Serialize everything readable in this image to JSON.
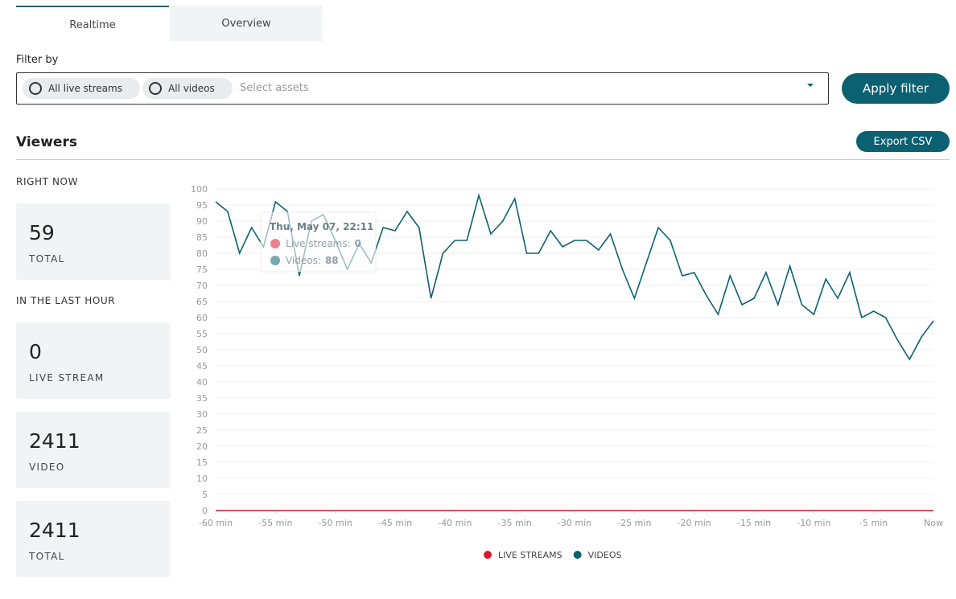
{
  "tabs": [
    "Realtime",
    "Overview"
  ],
  "filter": {
    "label": "Filter by",
    "chips": [
      "All live streams",
      "All videos"
    ],
    "placeholder": "Select assets",
    "button": "Apply filter"
  },
  "section": {
    "title": "Viewers",
    "export": "Export CSV"
  },
  "stats": {
    "right_now_label": "RIGHT NOW",
    "right_now": {
      "value": 59,
      "label": "TOTAL"
    },
    "last_hour_label": "IN THE LAST HOUR",
    "last_hour": [
      {
        "value": 0,
        "label": "LIVE STREAM"
      },
      {
        "value": 2411,
        "label": "VIDEO"
      },
      {
        "value": 2411,
        "label": "TOTAL"
      }
    ]
  },
  "tooltip": {
    "title": "Thu, May 07, 22:11",
    "rows": [
      {
        "label": "Live streams:",
        "value": 0
      },
      {
        "label": "Videos:",
        "value": 88
      }
    ]
  },
  "chart_data": {
    "type": "line",
    "x": [
      -60,
      -59,
      -58,
      -57,
      -56,
      -55,
      -54,
      -53,
      -52,
      -51,
      -50,
      -49,
      -48,
      -47,
      -46,
      -45,
      -44,
      -43,
      -42,
      -41,
      -40,
      -39,
      -38,
      -37,
      -36,
      -35,
      -34,
      -33,
      -32,
      -31,
      -30,
      -29,
      -28,
      -27,
      -26,
      -25,
      -24,
      -23,
      -22,
      -21,
      -20,
      -19,
      -18,
      -17,
      -16,
      -15,
      -14,
      -13,
      -12,
      -11,
      -10,
      -9,
      -8,
      -7,
      -6,
      -5,
      -4,
      -3,
      -2,
      -1,
      0
    ],
    "series": [
      {
        "name": "LIVE STREAMS",
        "color": "#d7192f",
        "values": [
          0,
          0,
          0,
          0,
          0,
          0,
          0,
          0,
          0,
          0,
          0,
          0,
          0,
          0,
          0,
          0,
          0,
          0,
          0,
          0,
          0,
          0,
          0,
          0,
          0,
          0,
          0,
          0,
          0,
          0,
          0,
          0,
          0,
          0,
          0,
          0,
          0,
          0,
          0,
          0,
          0,
          0,
          0,
          0,
          0,
          0,
          0,
          0,
          0,
          0,
          0,
          0,
          0,
          0,
          0,
          0,
          0,
          0,
          0,
          0,
          0
        ]
      },
      {
        "name": "VIDEOS",
        "color": "#0b6072",
        "values": [
          96,
          93,
          80,
          88,
          82,
          96,
          93,
          73,
          90,
          92,
          84,
          75,
          83,
          77,
          88,
          87,
          93,
          88,
          66,
          80,
          84,
          84,
          98,
          86,
          90,
          97,
          80,
          80,
          87,
          82,
          84,
          84,
          81,
          86,
          75,
          66,
          77,
          88,
          84,
          73,
          74,
          67,
          61,
          73,
          64,
          66,
          74,
          64,
          76,
          64,
          61,
          72,
          66,
          74,
          60,
          62,
          60,
          53,
          47,
          54,
          59
        ]
      }
    ],
    "xlim": [
      -60,
      0
    ],
    "xticks": [
      {
        "value": -60,
        "label": "-60 min"
      },
      {
        "value": -55,
        "label": "-55 min"
      },
      {
        "value": -50,
        "label": "-50 min"
      },
      {
        "value": -45,
        "label": "-45 min"
      },
      {
        "value": -40,
        "label": "-40 min"
      },
      {
        "value": -35,
        "label": "-35 min"
      },
      {
        "value": -30,
        "label": "-30 min"
      },
      {
        "value": -25,
        "label": "-25 min"
      },
      {
        "value": -20,
        "label": "-20 min"
      },
      {
        "value": -15,
        "label": "-15 min"
      },
      {
        "value": -10,
        "label": "-10 min"
      },
      {
        "value": -5,
        "label": "-5 min"
      },
      {
        "value": 0,
        "label": "Now"
      }
    ],
    "ylim": [
      0,
      100
    ],
    "yticks": [
      0,
      5,
      10,
      15,
      20,
      25,
      30,
      35,
      40,
      45,
      50,
      55,
      60,
      65,
      70,
      75,
      80,
      85,
      90,
      95,
      100
    ],
    "grid": true
  }
}
